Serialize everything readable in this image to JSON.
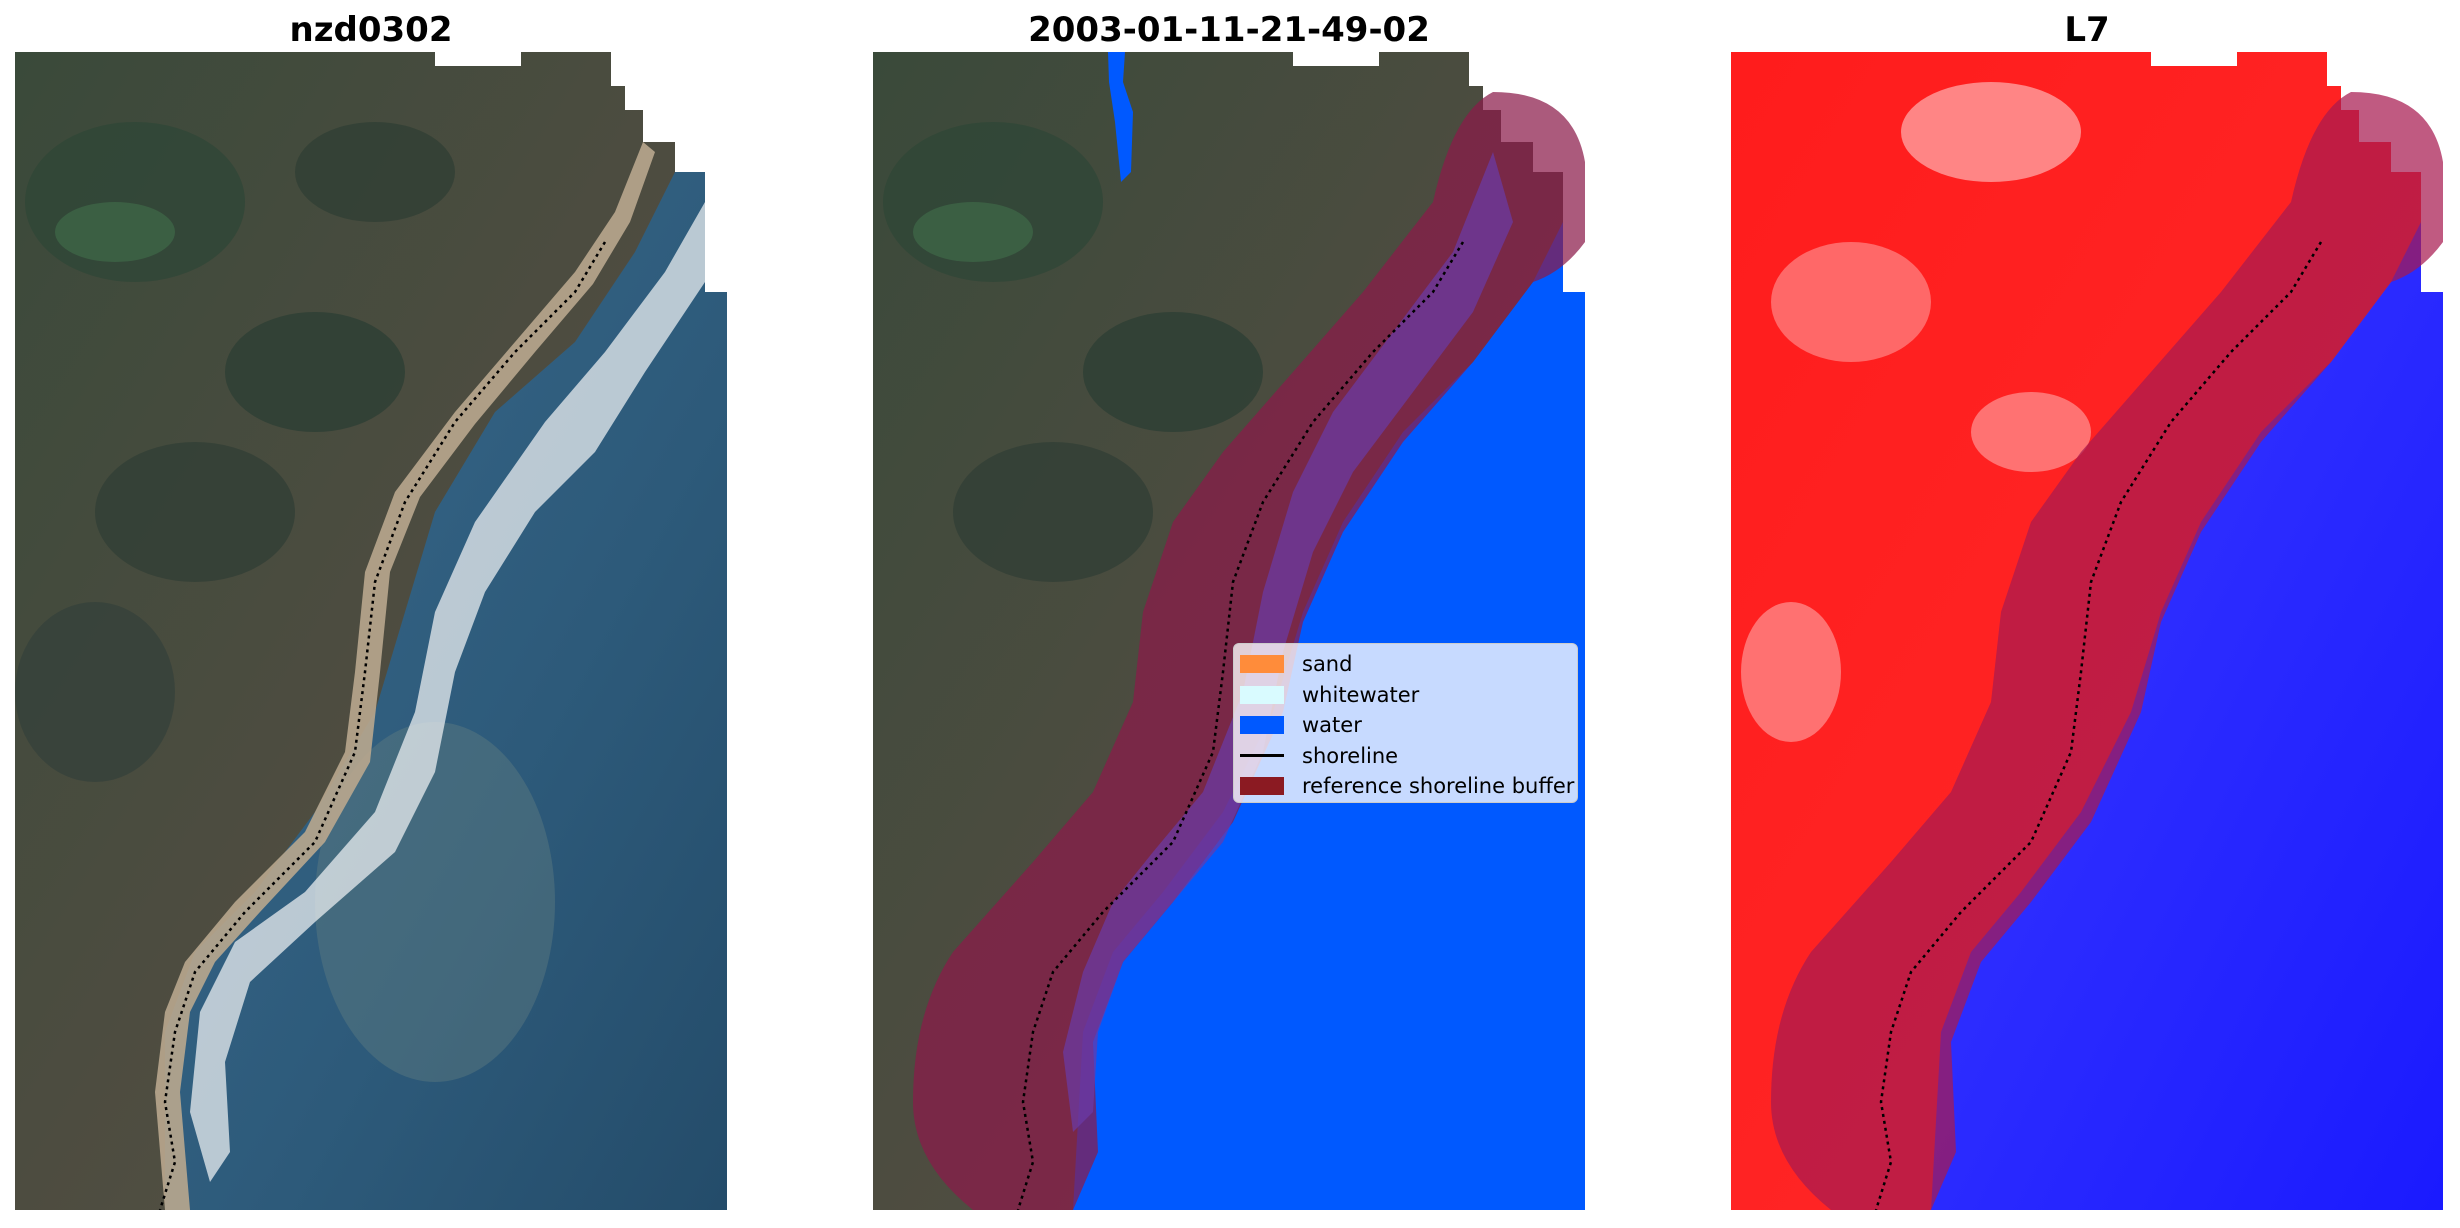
{
  "panels": {
    "left_title": "nzd0302",
    "middle_title": "2003-01-11-21-49-02",
    "right_title": "L7"
  },
  "legend": {
    "items": [
      {
        "label": "sand",
        "color": "#ff8c3a",
        "kind": "patch"
      },
      {
        "label": "whitewater",
        "color": "#d9fbff",
        "kind": "patch"
      },
      {
        "label": "water",
        "color": "#0059ff",
        "kind": "patch"
      },
      {
        "label": "shoreline",
        "color": "#000000",
        "kind": "line"
      },
      {
        "label": "reference shoreline buffer",
        "color": "#8b1a22",
        "kind": "patch"
      }
    ]
  },
  "colors": {
    "land_dark": "#3f4a3c",
    "land_light": "#5b5a4a",
    "sea": "#2e5877",
    "sand_strip": "#b8a48c",
    "water_class": "#0059ff",
    "buffer": "#8b1a32",
    "index_positive": "#ff1a1a",
    "index_negative": "#1e1eff"
  }
}
